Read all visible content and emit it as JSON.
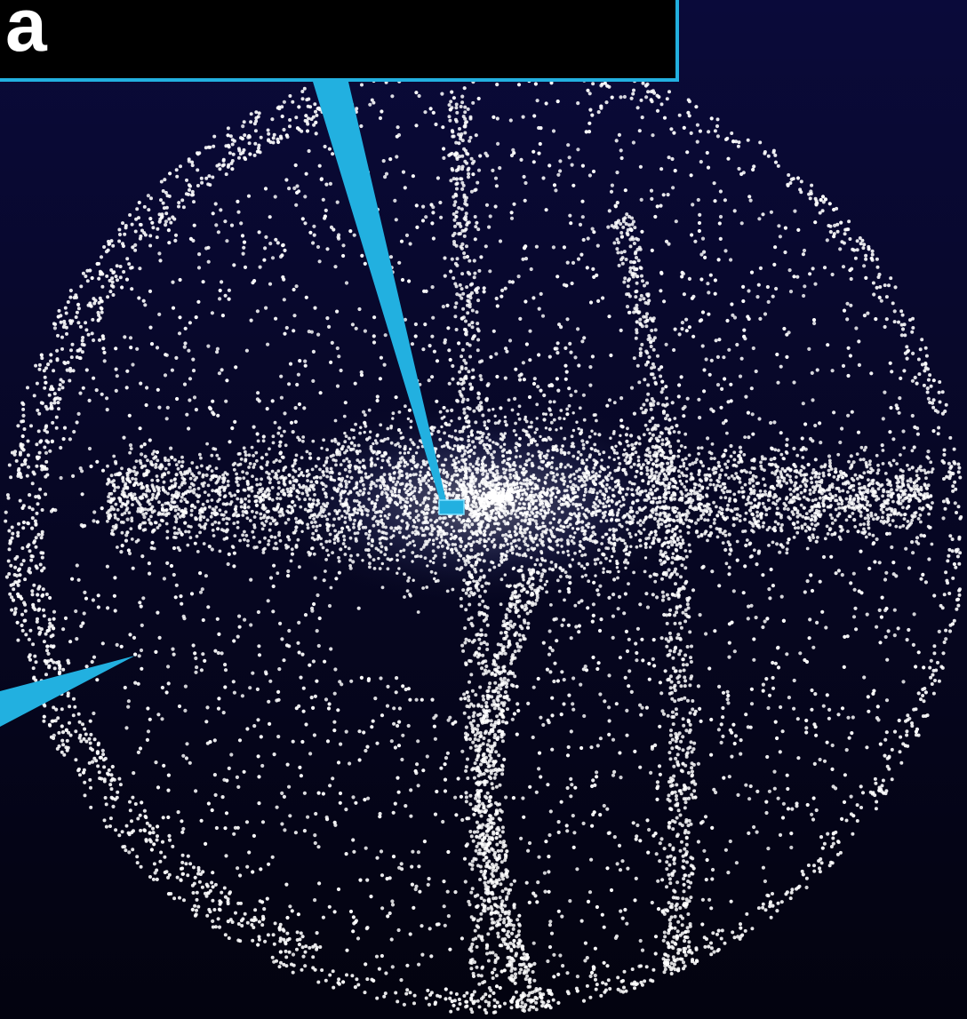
{
  "panel": {
    "letter": "a"
  },
  "colors": {
    "background_top": "#0a0a3a",
    "background_bottom": "#03030f",
    "dots": "#ffffff",
    "accent": "#22b0e0",
    "label_panel": "#000000"
  },
  "icons": {
    "callout_pointer_main": "callout-pointer-icon",
    "callout_pointer_side": "callout-pointer-icon",
    "highlight_box": "highlight-box-icon"
  }
}
